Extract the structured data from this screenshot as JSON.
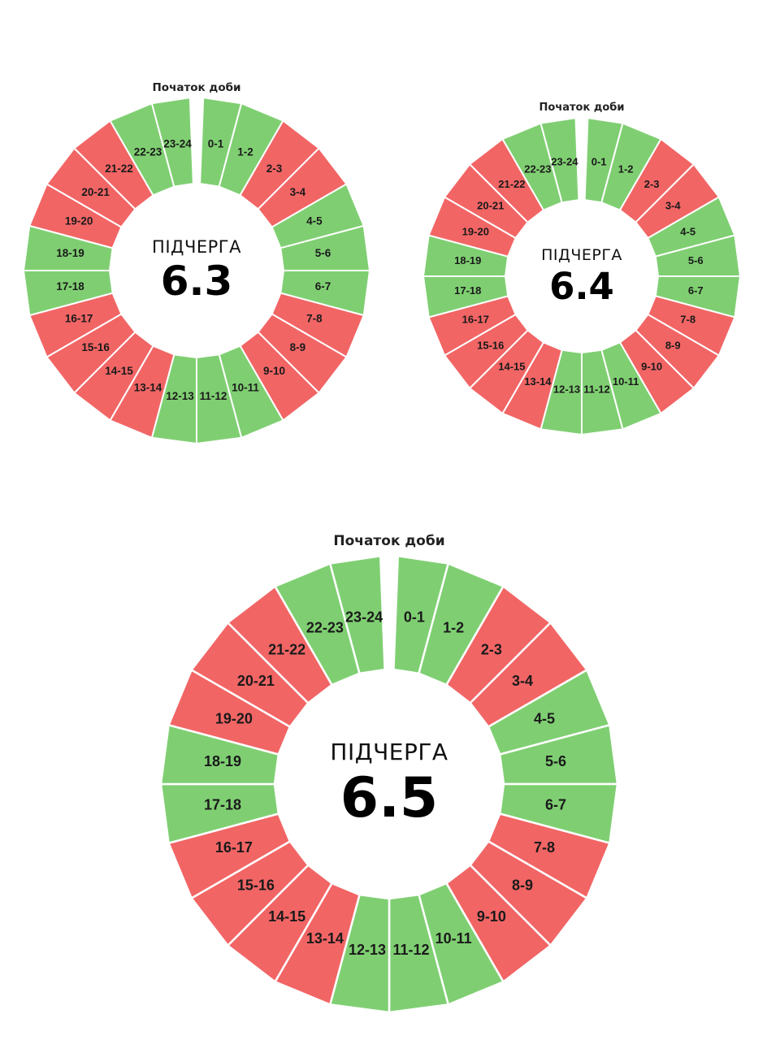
{
  "colors": {
    "on": "#7fcf72",
    "off": "#f26565",
    "separator": "#ffffff"
  },
  "start_label": "Початок доби",
  "center_title": "ПІДЧЕРГА",
  "hours": [
    "0-1",
    "1-2",
    "2-3",
    "3-4",
    "4-5",
    "5-6",
    "6-7",
    "7-8",
    "8-9",
    "9-10",
    "10-11",
    "11-12",
    "12-13",
    "13-14",
    "14-15",
    "15-16",
    "16-17",
    "17-18",
    "18-19",
    "19-20",
    "20-21",
    "21-22",
    "22-23",
    "23-24"
  ],
  "schedule": [
    {
      "value": "6.3",
      "states": [
        "on",
        "on",
        "off",
        "off",
        "on",
        "on",
        "on",
        "off",
        "off",
        "off",
        "on",
        "on",
        "on",
        "off",
        "off",
        "off",
        "off",
        "on",
        "on",
        "off",
        "off",
        "off",
        "on",
        "on"
      ]
    },
    {
      "value": "6.4",
      "states": [
        "on",
        "on",
        "off",
        "off",
        "on",
        "on",
        "on",
        "off",
        "off",
        "off",
        "on",
        "on",
        "on",
        "off",
        "off",
        "off",
        "off",
        "on",
        "on",
        "off",
        "off",
        "off",
        "on",
        "on"
      ]
    },
    {
      "value": "6.5",
      "states": [
        "on",
        "on",
        "off",
        "off",
        "on",
        "on",
        "on",
        "off",
        "off",
        "off",
        "on",
        "on",
        "on",
        "off",
        "off",
        "off",
        "off",
        "on",
        "on",
        "off",
        "off",
        "off",
        "on",
        "on"
      ]
    }
  ]
}
